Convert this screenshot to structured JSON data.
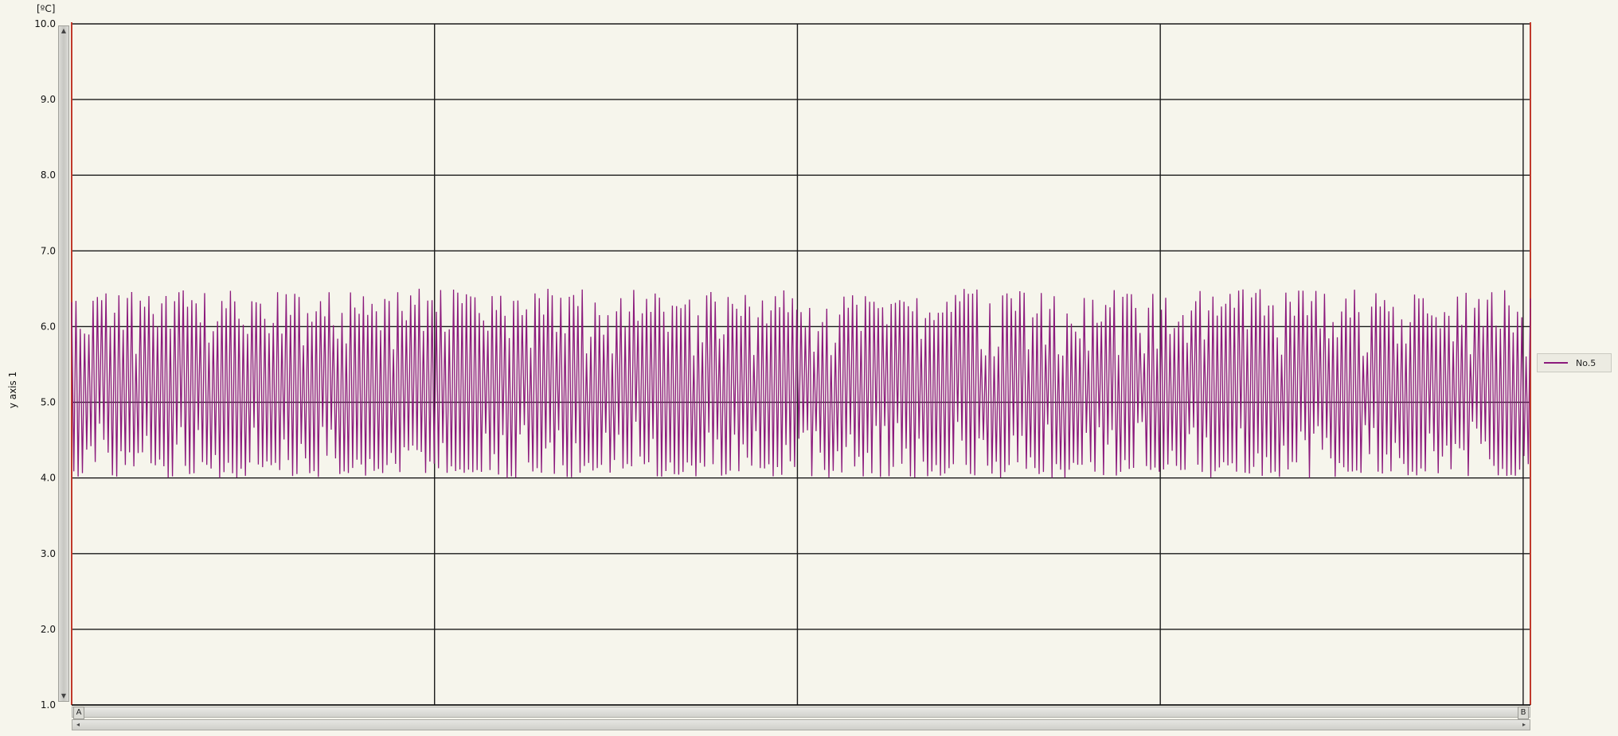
{
  "chart_data": {
    "type": "line",
    "unit_label": "[ºC]",
    "ylabel": "y axis 1",
    "xlabel": "",
    "ylim": [
      1.0,
      10.0
    ],
    "y_ticks": [
      "10.0",
      "9.0",
      "8.0",
      "7.0",
      "6.0",
      "5.0",
      "4.0",
      "3.0",
      "2.0",
      "1.0"
    ],
    "x_gridlines": 4,
    "grid": true,
    "legend_position": "right",
    "series": [
      {
        "name": "No.5",
        "color": "#8b1a7c",
        "description_values": {
          "min": 4.0,
          "max": 6.5,
          "center": 5.2,
          "cycles_approx": 340
        }
      }
    ],
    "cursors": [
      "A",
      "B"
    ]
  },
  "colors": {
    "background": "#f6f5ec",
    "grid": "#1a1a1a",
    "series": "#8b1a7c",
    "plot_border_left": "#c0392b",
    "plot_border_right": "#c0392b"
  }
}
